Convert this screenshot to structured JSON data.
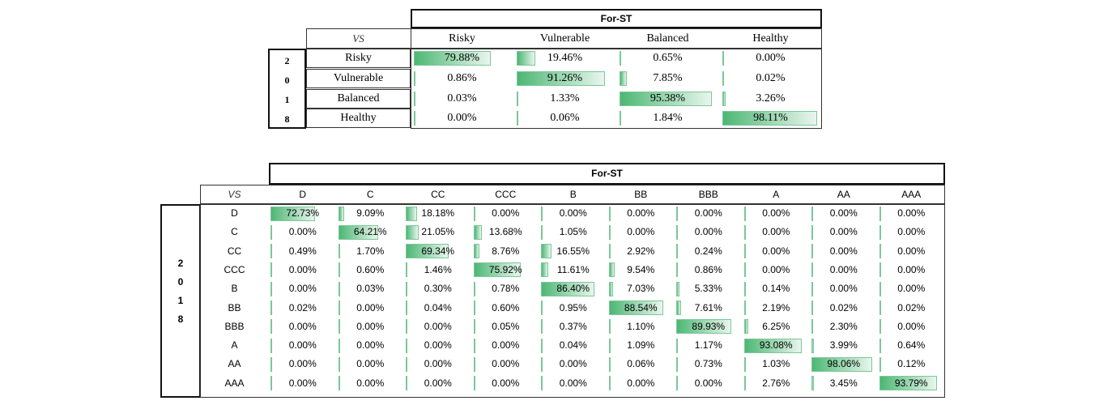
{
  "colors": {
    "bar_start": "#4db774",
    "bar_end": "#e9f6ee",
    "bar_border": "#7cc79a"
  },
  "table1": {
    "header": "For-ST",
    "corner": "VS",
    "year_digits": [
      "2",
      "0",
      "1",
      "8"
    ],
    "columns": [
      "Risky",
      "Vulnerable",
      "Balanced",
      "Healthy"
    ],
    "rows": [
      {
        "label": "Risky",
        "values": [
          "79.88%",
          "19.46%",
          "0.65%",
          "0.00%"
        ]
      },
      {
        "label": "Vulnerable",
        "values": [
          "0.86%",
          "91.26%",
          "7.85%",
          "0.02%"
        ]
      },
      {
        "label": "Balanced",
        "values": [
          "0.03%",
          "1.33%",
          "95.38%",
          "3.26%"
        ]
      },
      {
        "label": "Healthy",
        "values": [
          "0.00%",
          "0.06%",
          "1.84%",
          "98.11%"
        ]
      }
    ]
  },
  "table2": {
    "header": "For-ST",
    "corner": "VS",
    "year_digits": [
      "2",
      "0",
      "1",
      "8"
    ],
    "columns": [
      "D",
      "C",
      "CC",
      "CCC",
      "B",
      "BB",
      "BBB",
      "A",
      "AA",
      "AAA"
    ],
    "rows": [
      {
        "label": "D",
        "values": [
          "72.73%",
          "9.09%",
          "18.18%",
          "0.00%",
          "0.00%",
          "0.00%",
          "0.00%",
          "0.00%",
          "0.00%",
          "0.00%"
        ]
      },
      {
        "label": "C",
        "values": [
          "0.00%",
          "64.21%",
          "21.05%",
          "13.68%",
          "1.05%",
          "0.00%",
          "0.00%",
          "0.00%",
          "0.00%",
          "0.00%"
        ]
      },
      {
        "label": "CC",
        "values": [
          "0.49%",
          "1.70%",
          "69.34%",
          "8.76%",
          "16.55%",
          "2.92%",
          "0.24%",
          "0.00%",
          "0.00%",
          "0.00%"
        ]
      },
      {
        "label": "CCC",
        "values": [
          "0.00%",
          "0.60%",
          "1.46%",
          "75.92%",
          "11.61%",
          "9.54%",
          "0.86%",
          "0.00%",
          "0.00%",
          "0.00%"
        ]
      },
      {
        "label": "B",
        "values": [
          "0.00%",
          "0.03%",
          "0.30%",
          "0.78%",
          "86.40%",
          "7.03%",
          "5.33%",
          "0.14%",
          "0.00%",
          "0.00%"
        ]
      },
      {
        "label": "BB",
        "values": [
          "0.02%",
          "0.00%",
          "0.04%",
          "0.60%",
          "0.95%",
          "88.54%",
          "7.61%",
          "2.19%",
          "0.02%",
          "0.02%"
        ]
      },
      {
        "label": "BBB",
        "values": [
          "0.00%",
          "0.00%",
          "0.00%",
          "0.05%",
          "0.37%",
          "1.10%",
          "89.93%",
          "6.25%",
          "2.30%",
          "0.00%"
        ]
      },
      {
        "label": "A",
        "values": [
          "0.00%",
          "0.00%",
          "0.00%",
          "0.00%",
          "0.04%",
          "1.09%",
          "1.17%",
          "93.08%",
          "3.99%",
          "0.64%"
        ]
      },
      {
        "label": "AA",
        "values": [
          "0.00%",
          "0.00%",
          "0.00%",
          "0.00%",
          "0.00%",
          "0.06%",
          "0.73%",
          "1.03%",
          "98.06%",
          "0.12%"
        ]
      },
      {
        "label": "AAA",
        "values": [
          "0.00%",
          "0.00%",
          "0.00%",
          "0.00%",
          "0.00%",
          "0.00%",
          "0.00%",
          "2.76%",
          "3.45%",
          "93.79%"
        ]
      }
    ]
  }
}
